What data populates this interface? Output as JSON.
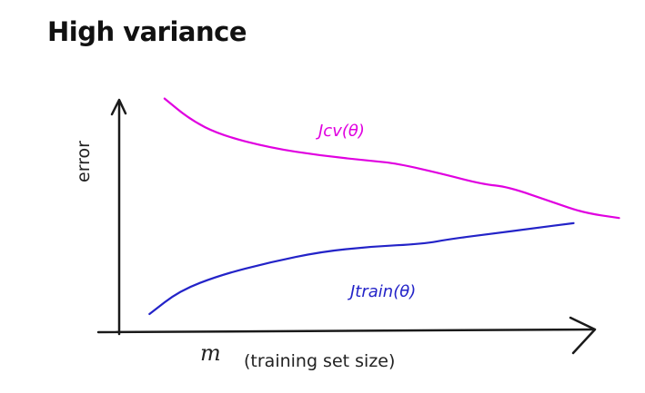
{
  "page": {
    "title": "High variance"
  },
  "chart_data": {
    "type": "line",
    "title": "High variance",
    "ylabel": "error",
    "xlabel_variable": "m",
    "xlabel_text": "(training set size)",
    "xlim": [
      0,
      10
    ],
    "ylim": [
      0,
      10
    ],
    "grid": false,
    "legend": "none",
    "axis_color": "#1a1a1a",
    "series": [
      {
        "name": "Jcv(θ)",
        "label": "Jcv(θ)",
        "color": "#e000e0",
        "x": [
          0.9,
          1.4,
          2.0,
          3.0,
          4.0,
          5.0,
          5.5,
          6.4,
          7.2,
          7.7,
          8.6,
          9.2,
          9.9
        ],
        "y": [
          9.0,
          8.2,
          7.6,
          7.1,
          6.8,
          6.6,
          6.5,
          6.1,
          5.7,
          5.6,
          5.0,
          4.6,
          4.4
        ]
      },
      {
        "name": "Jtrain(θ)",
        "label": "Jtrain(θ)",
        "color": "#2323c8",
        "x": [
          0.6,
          1.2,
          2.0,
          3.0,
          4.0,
          5.0,
          6.0,
          6.6,
          7.4,
          8.2,
          9.0
        ],
        "y": [
          0.7,
          1.6,
          2.2,
          2.7,
          3.1,
          3.3,
          3.4,
          3.6,
          3.8,
          4.0,
          4.2
        ]
      }
    ]
  }
}
